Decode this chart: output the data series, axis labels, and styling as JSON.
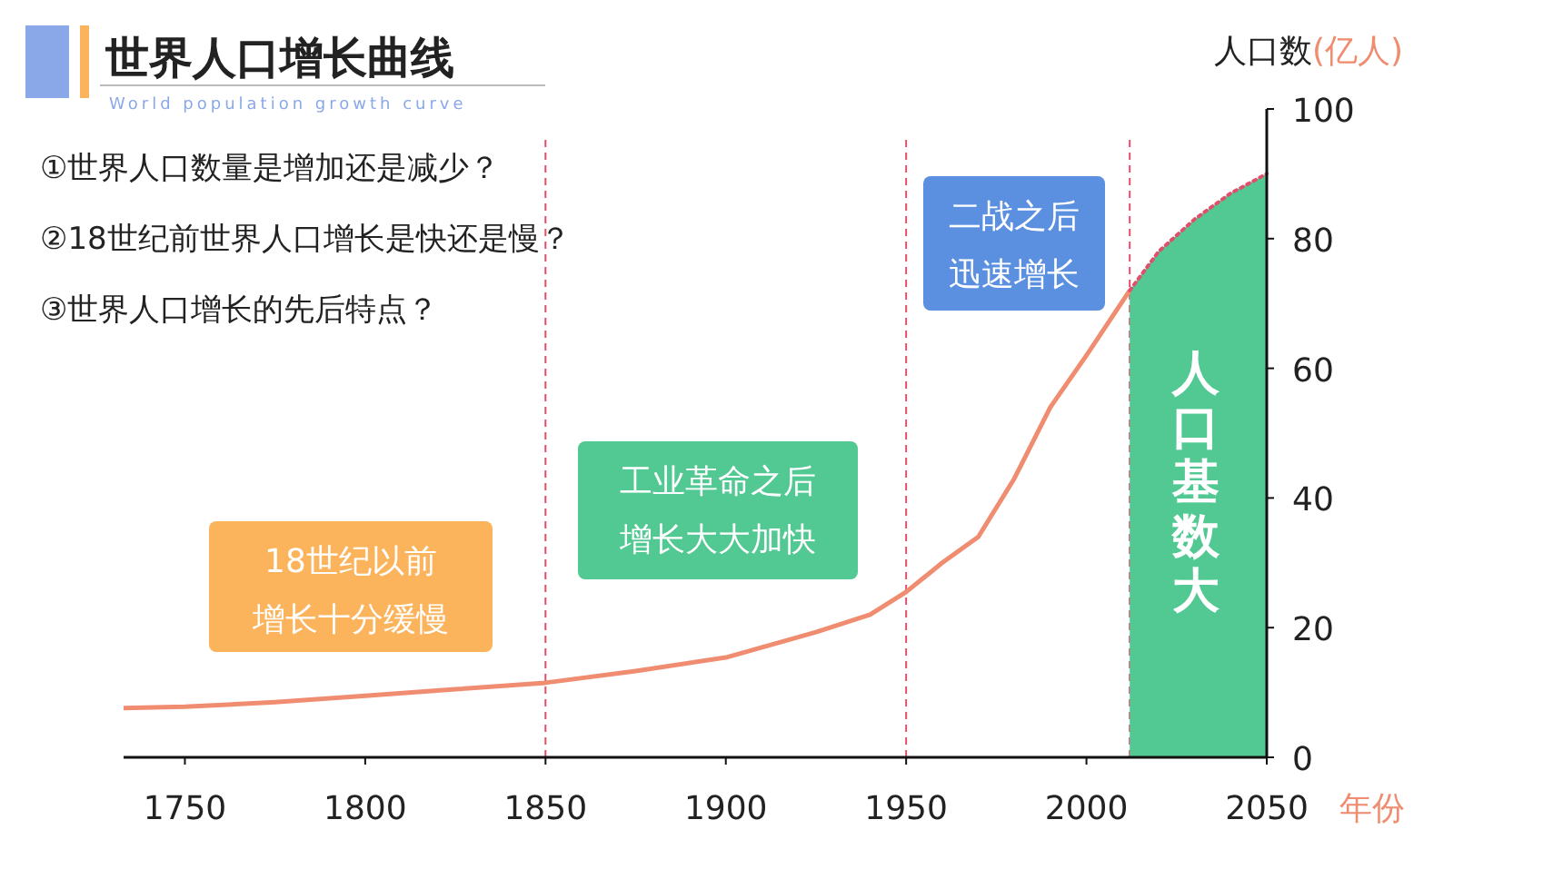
{
  "chart_data": {
    "type": "line",
    "title": "世界人口增长曲线",
    "subtitle": "World population growth curve",
    "xlabel": "年份",
    "ylabel": "人口数(亿人)",
    "xlim": [
      1733,
      2050
    ],
    "ylim": [
      0,
      100
    ],
    "xticks": [
      1750,
      1800,
      1850,
      1900,
      1950,
      2000,
      2050
    ],
    "yticks": [
      0,
      20,
      40,
      60,
      80,
      100
    ],
    "series": [
      {
        "type": "area",
        "color": "#52c893",
        "x": [
          2012,
          2020,
          2030,
          2040,
          2050
        ],
        "values": [
          72,
          78,
          83,
          87,
          90
        ]
      },
      {
        "color": "#f08c70",
        "line_style": "solid",
        "x": [
          1733,
          1750,
          1775,
          1800,
          1825,
          1850,
          1875,
          1900,
          1925,
          1940,
          1950,
          1960,
          1970,
          1980,
          1990,
          2000,
          2012
        ],
        "values": [
          7.6,
          7.8,
          8.5,
          9.5,
          10.5,
          11.5,
          13.3,
          15.4,
          19.3,
          22,
          25.5,
          30,
          34,
          43,
          54,
          62,
          72
        ]
      },
      {
        "color": "#e0506a",
        "line_style": "dotted",
        "x": [
          2012,
          2020,
          2030,
          2040,
          2050
        ],
        "values": [
          72,
          78,
          83,
          87,
          90
        ]
      }
    ],
    "ref_lines": [
      {
        "axis": "x",
        "value": 1850,
        "color": "#e0506a",
        "line_style": "dashed"
      },
      {
        "axis": "x",
        "value": 1950,
        "color": "#e0506a",
        "line_style": "dashed"
      },
      {
        "axis": "x",
        "value": 2012,
        "color": "#e0506a",
        "line_style": "dashed"
      }
    ],
    "annotations": [
      "①世界人口数量是增加还是减少？",
      "②18世纪前世界人口增长是快还是慢？",
      "③世界人口增长的先后特点？",
      "18世纪以前增长十分缓慢",
      "工业革命之后增长大大加快",
      "二战之后迅速增长",
      "人口基数大"
    ]
  }
}
